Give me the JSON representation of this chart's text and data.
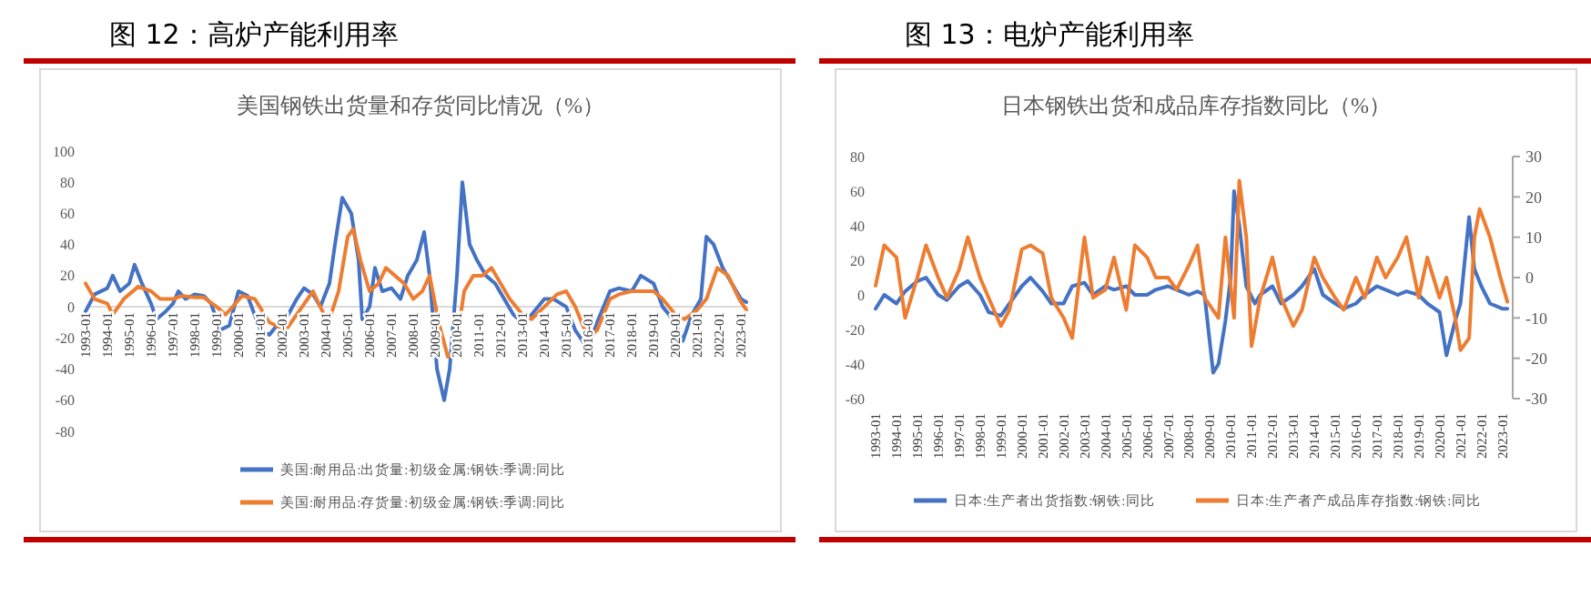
{
  "chart_data": [
    {
      "type": "line",
      "title": "图 12：高炉产能利用率",
      "subtitle": "美国钢铁出货量和存货同比情况（%）",
      "xlim": [
        "1993-01",
        "2023-05"
      ],
      "xticks": [
        {
          "value": "1993-01",
          "label": "1993-01"
        },
        {
          "value": "1994-01",
          "label": "1994-01"
        },
        {
          "value": "1995-01",
          "label": "1995-01"
        },
        {
          "value": "1996-01",
          "label": "1996-01"
        },
        {
          "value": "1997-01",
          "label": "1997-01"
        },
        {
          "value": "1998-01",
          "label": "1998-01"
        },
        {
          "value": "1999-01",
          "label": "1999-01"
        },
        {
          "value": "2000-01",
          "label": "2000-01"
        },
        {
          "value": "2001-01",
          "label": "2001-01"
        },
        {
          "value": "2002-01",
          "label": "2002-01"
        },
        {
          "value": "2003-01",
          "label": "2003-01"
        },
        {
          "value": "2004-01",
          "label": "2004-01"
        },
        {
          "value": "2005-01",
          "label": "2005-01"
        },
        {
          "value": "2006-01",
          "label": "2006-01"
        },
        {
          "value": "2007-01",
          "label": "2007-01"
        },
        {
          "value": "2008-01",
          "label": "2008-01"
        },
        {
          "value": "2009-01",
          "label": "2009-01"
        },
        {
          "value": "2010-01",
          "label": "2010-01"
        },
        {
          "value": "2011-01",
          "label": "2011-01"
        },
        {
          "value": "2012-01",
          "label": "2012-01"
        },
        {
          "value": "2013-01",
          "label": "2013-01"
        },
        {
          "value": "2014-01",
          "label": "2014-01"
        },
        {
          "value": "2015-01",
          "label": "2015-01"
        },
        {
          "value": "2016-01",
          "label": "2016-01"
        },
        {
          "value": "2017-01",
          "label": "2017-01"
        },
        {
          "value": "2018-01",
          "label": "2018-01"
        },
        {
          "value": "2019-01",
          "label": "2019-01"
        },
        {
          "value": "2020-01",
          "label": "2020-01"
        },
        {
          "value": "2021-01",
          "label": "2021-01"
        },
        {
          "value": "2022-01",
          "label": "2022-01"
        },
        {
          "value": "2023-01",
          "label": "2023-01"
        }
      ],
      "ylim": [
        -80,
        100
      ],
      "yticks": [
        -80,
        -60,
        -40,
        -20,
        0,
        20,
        40,
        60,
        80,
        100
      ],
      "grid": false,
      "legend": "bottom",
      "series": [
        {
          "name": "美国:耐用品:出货量:初级金属:钢铁:季调:同比",
          "color": "#4472c4",
          "x": [
            "1993-01",
            "1993-06",
            "1994-01",
            "1994-04",
            "1994-08",
            "1995-01",
            "1995-04",
            "1995-08",
            "1996-01",
            "1996-04",
            "1996-09",
            "1997-01",
            "1997-04",
            "1997-08",
            "1998-01",
            "1998-06",
            "1998-10",
            "1999-03",
            "1999-08",
            "2000-01",
            "2000-06",
            "2001-01",
            "2001-06",
            "2001-10",
            "2002-03",
            "2002-09",
            "2003-01",
            "2003-06",
            "2003-10",
            "2004-03",
            "2004-06",
            "2004-10",
            "2005-03",
            "2005-07",
            "2005-09",
            "2006-01",
            "2006-04",
            "2006-08",
            "2007-01",
            "2007-06",
            "2007-10",
            "2008-03",
            "2008-07",
            "2008-10",
            "2009-02",
            "2009-06",
            "2009-09",
            "2010-01",
            "2010-04",
            "2010-08",
            "2010-12",
            "2011-05",
            "2011-10",
            "2012-03",
            "2012-08",
            "2013-01",
            "2013-06",
            "2014-01",
            "2014-06",
            "2015-01",
            "2015-06",
            "2016-01",
            "2016-06",
            "2017-01",
            "2017-06",
            "2018-01",
            "2018-06",
            "2019-01",
            "2019-06",
            "2020-01",
            "2020-05",
            "2020-10",
            "2021-03",
            "2021-06",
            "2021-10",
            "2022-03",
            "2022-08",
            "2023-01",
            "2023-04"
          ],
          "values": [
            -3,
            8,
            12,
            20,
            10,
            15,
            27,
            15,
            2,
            -8,
            -3,
            2,
            10,
            5,
            8,
            7,
            2,
            -15,
            -12,
            10,
            7,
            -15,
            -18,
            -12,
            -8,
            5,
            12,
            8,
            0,
            15,
            40,
            70,
            60,
            30,
            -8,
            0,
            25,
            10,
            12,
            5,
            20,
            30,
            48,
            20,
            -40,
            -60,
            -40,
            20,
            80,
            40,
            30,
            20,
            15,
            5,
            -5,
            -10,
            -5,
            5,
            5,
            0,
            -15,
            -27,
            -10,
            10,
            12,
            10,
            20,
            15,
            0,
            -10,
            -22,
            -5,
            5,
            45,
            40,
            25,
            15,
            5,
            3
          ]
        },
        {
          "name": "美国:耐用品:存货量:初级金属:钢铁:季调:同比",
          "color": "#ed7d31",
          "x": [
            "1993-01",
            "1993-06",
            "1994-01",
            "1994-04",
            "1994-10",
            "1995-06",
            "1996-01",
            "1996-06",
            "1997-01",
            "1997-06",
            "1998-01",
            "1998-06",
            "1999-01",
            "1999-06",
            "2000-03",
            "2000-10",
            "2001-06",
            "2002-03",
            "2002-09",
            "2003-06",
            "2003-12",
            "2004-03",
            "2004-08",
            "2005-01",
            "2005-04",
            "2005-08",
            "2006-01",
            "2006-06",
            "2006-10",
            "2007-03",
            "2007-08",
            "2008-01",
            "2008-06",
            "2008-10",
            "2009-03",
            "2009-08",
            "2009-12",
            "2010-05",
            "2010-10",
            "2011-03",
            "2011-08",
            "2012-01",
            "2012-06",
            "2013-01",
            "2013-06",
            "2014-01",
            "2014-08",
            "2015-01",
            "2015-06",
            "2016-01",
            "2016-06",
            "2017-01",
            "2017-06",
            "2018-01",
            "2018-06",
            "2019-01",
            "2019-06",
            "2020-01",
            "2020-06",
            "2021-01",
            "2021-06",
            "2021-12",
            "2022-06",
            "2022-12",
            "2023-04"
          ],
          "values": [
            15,
            5,
            2,
            -5,
            5,
            13,
            10,
            5,
            5,
            7,
            6,
            6,
            0,
            -5,
            7,
            5,
            -10,
            -15,
            -5,
            10,
            -5,
            -8,
            10,
            45,
            50,
            30,
            10,
            15,
            25,
            20,
            15,
            5,
            10,
            20,
            -10,
            -32,
            -30,
            10,
            20,
            20,
            25,
            15,
            5,
            -5,
            -8,
            0,
            8,
            10,
            0,
            -20,
            -15,
            5,
            8,
            10,
            10,
            10,
            5,
            -5,
            -8,
            -2,
            5,
            25,
            20,
            5,
            -2
          ]
        }
      ]
    },
    {
      "type": "line",
      "title": "图 13：电炉产能利用率",
      "subtitle": "日本钢铁出货和成品库存指数同比（%）",
      "xlim": [
        "1993-01",
        "2023-05"
      ],
      "xticks": [
        {
          "value": "1993-01",
          "label": "1993-01"
        },
        {
          "value": "1994-01",
          "label": "1994-01"
        },
        {
          "value": "1995-01",
          "label": "1995-01"
        },
        {
          "value": "1996-01",
          "label": "1996-01"
        },
        {
          "value": "1997-01",
          "label": "1997-01"
        },
        {
          "value": "1998-01",
          "label": "1998-01"
        },
        {
          "value": "1999-01",
          "label": "1999-01"
        },
        {
          "value": "2000-01",
          "label": "2000-01"
        },
        {
          "value": "2001-01",
          "label": "2001-01"
        },
        {
          "value": "2002-01",
          "label": "2002-01"
        },
        {
          "value": "2003-01",
          "label": "2003-01"
        },
        {
          "value": "2004-01",
          "label": "2004-01"
        },
        {
          "value": "2005-01",
          "label": "2005-01"
        },
        {
          "value": "2006-01",
          "label": "2006-01"
        },
        {
          "value": "2007-01",
          "label": "2007-01"
        },
        {
          "value": "2008-01",
          "label": "2008-01"
        },
        {
          "value": "2009-01",
          "label": "2009-01"
        },
        {
          "value": "2010-01",
          "label": "2010-01"
        },
        {
          "value": "2011-01",
          "label": "2011-01"
        },
        {
          "value": "2012-01",
          "label": "2012-01"
        },
        {
          "value": "2013-01",
          "label": "2013-01"
        },
        {
          "value": "2014-01",
          "label": "2014-01"
        },
        {
          "value": "2015-01",
          "label": "2015-01"
        },
        {
          "value": "2016-01",
          "label": "2016-01"
        },
        {
          "value": "2017-01",
          "label": "2017-01"
        },
        {
          "value": "2018-01",
          "label": "2018-01"
        },
        {
          "value": "2019-01",
          "label": "2019-01"
        },
        {
          "value": "2020-01",
          "label": "2020-01"
        },
        {
          "value": "2021-01",
          "label": "2021-01"
        },
        {
          "value": "2022-01",
          "label": "2022-01"
        },
        {
          "value": "2023-01",
          "label": "2023-01"
        }
      ],
      "ylim": [
        -60,
        80
      ],
      "yticks": [
        -60,
        -40,
        -20,
        0,
        20,
        40,
        60,
        80
      ],
      "y2lim": [
        -30,
        30
      ],
      "y2ticks": [
        -30,
        -20,
        -10,
        0,
        10,
        20,
        30
      ],
      "grid": false,
      "legend": "bottom",
      "series": [
        {
          "name": "日本:生产者出货指数:钢铁:同比",
          "color": "#4472c4",
          "x": [
            "1993-01",
            "1993-06",
            "1994-01",
            "1994-06",
            "1995-01",
            "1995-06",
            "1996-01",
            "1996-06",
            "1997-01",
            "1997-06",
            "1998-01",
            "1998-06",
            "1999-01",
            "1999-06",
            "2000-01",
            "2000-06",
            "2001-01",
            "2001-06",
            "2002-01",
            "2002-06",
            "2003-01",
            "2003-06",
            "2004-01",
            "2004-06",
            "2005-01",
            "2005-06",
            "2006-01",
            "2006-06",
            "2007-01",
            "2007-06",
            "2008-01",
            "2008-06",
            "2008-10",
            "2009-03",
            "2009-06",
            "2009-10",
            "2010-01",
            "2010-03",
            "2010-06",
            "2010-10",
            "2011-03",
            "2011-06",
            "2012-01",
            "2012-06",
            "2013-01",
            "2013-06",
            "2014-01",
            "2014-06",
            "2015-01",
            "2015-06",
            "2016-01",
            "2016-06",
            "2017-01",
            "2017-06",
            "2018-01",
            "2018-06",
            "2019-01",
            "2019-06",
            "2020-01",
            "2020-05",
            "2020-10",
            "2021-01",
            "2021-06",
            "2021-09",
            "2022-01",
            "2022-06",
            "2023-01",
            "2023-04"
          ],
          "values": [
            -8,
            0,
            -5,
            2,
            8,
            10,
            0,
            -3,
            5,
            8,
            0,
            -10,
            -12,
            -5,
            5,
            10,
            2,
            -5,
            -5,
            5,
            7,
            0,
            5,
            3,
            5,
            0,
            0,
            3,
            5,
            3,
            0,
            2,
            0,
            -45,
            -40,
            -15,
            10,
            60,
            40,
            5,
            -5,
            0,
            5,
            -5,
            0,
            5,
            15,
            0,
            -5,
            -8,
            -5,
            0,
            5,
            3,
            0,
            2,
            0,
            -5,
            -10,
            -35,
            -15,
            -5,
            45,
            15,
            5,
            -5,
            -8,
            -8
          ]
        },
        {
          "name": "日本:生产者产成品库存指数:钢铁:同比",
          "color": "#ed7d31",
          "axis": "y2",
          "x": [
            "1993-01",
            "1993-06",
            "1994-01",
            "1994-06",
            "1995-01",
            "1995-06",
            "1996-01",
            "1996-06",
            "1997-01",
            "1997-06",
            "1998-01",
            "1998-06",
            "1999-01",
            "1999-06",
            "2000-01",
            "2000-06",
            "2001-01",
            "2001-06",
            "2002-01",
            "2002-06",
            "2003-01",
            "2003-06",
            "2004-01",
            "2004-06",
            "2005-01",
            "2005-06",
            "2006-01",
            "2006-06",
            "2007-01",
            "2007-06",
            "2008-01",
            "2008-06",
            "2008-10",
            "2009-06",
            "2009-10",
            "2010-03",
            "2010-06",
            "2010-10",
            "2011-01",
            "2011-06",
            "2012-01",
            "2012-06",
            "2013-01",
            "2013-06",
            "2014-01",
            "2014-06",
            "2015-01",
            "2015-06",
            "2016-01",
            "2016-06",
            "2017-01",
            "2017-06",
            "2018-01",
            "2018-06",
            "2019-01",
            "2019-06",
            "2020-01",
            "2020-05",
            "2020-10",
            "2021-01",
            "2021-06",
            "2021-09",
            "2021-12",
            "2022-06",
            "2022-12",
            "2023-04"
          ],
          "values": [
            -2,
            8,
            5,
            -10,
            0,
            8,
            0,
            -5,
            2,
            10,
            0,
            -5,
            -12,
            -8,
            7,
            8,
            6,
            -5,
            -10,
            -15,
            10,
            -5,
            -3,
            5,
            -8,
            8,
            5,
            0,
            0,
            -3,
            3,
            8,
            -5,
            -10,
            10,
            -10,
            24,
            10,
            -17,
            -5,
            5,
            -5,
            -12,
            -8,
            5,
            0,
            -5,
            -8,
            0,
            -5,
            5,
            0,
            5,
            10,
            -5,
            5,
            -5,
            0,
            -10,
            -18,
            -15,
            10,
            17,
            10,
            0,
            -6
          ]
        }
      ]
    }
  ]
}
